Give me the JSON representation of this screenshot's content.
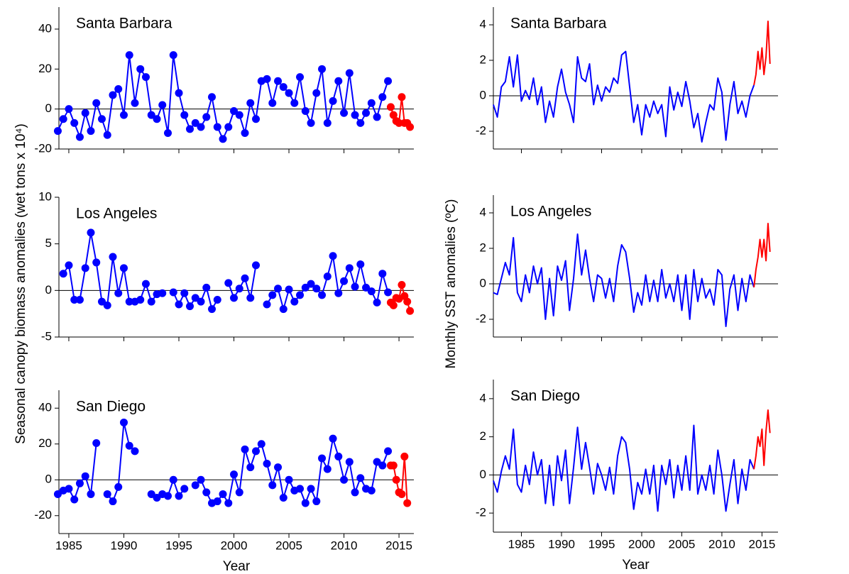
{
  "shared_labels": {
    "left_ylabel": "Seasonal canopy biomass anomalies (wet tons x 10⁴)",
    "right_ylabel": "Monthly SST anomalies (ºC)"
  },
  "chart_data": [
    {
      "type": "line",
      "title": "Santa Barbara",
      "markers": true,
      "zero_line": true,
      "xlim": [
        1984.1,
        2016.35
      ],
      "xticks": [
        1985,
        1990,
        1995,
        2000,
        2005,
        2010,
        2015
      ],
      "ylim": [
        -20,
        51
      ],
      "yticks": [
        -20,
        0,
        20,
        40
      ],
      "series": [
        {
          "color": "#0000ff",
          "x": [
            1984,
            1984.5,
            1985,
            1985.5,
            1986,
            1986.5,
            1987,
            1987.5,
            1988,
            1988.5,
            1989,
            1989.5,
            1990,
            1990.5,
            1991,
            1991.5,
            1992,
            1992.5,
            1993,
            1993.5,
            1994,
            1994.5,
            1995,
            1995.5,
            1996,
            1996.5,
            1997,
            1997.5,
            1998,
            1998.5,
            1999,
            1999.5,
            2000,
            2000.5,
            2001,
            2001.5,
            2002,
            2002.5,
            2003,
            2003.5,
            2004,
            2004.5,
            2005,
            2005.5,
            2006,
            2006.5,
            2007,
            2007.5,
            2008,
            2008.5,
            2009,
            2009.5,
            2010,
            2010.5,
            2011,
            2011.5,
            2012,
            2012.5,
            2013,
            2013.5,
            2014
          ],
          "values": [
            -11,
            -5,
            0,
            -7,
            -14,
            -2,
            -11,
            3,
            -5,
            -13,
            7,
            10,
            -3,
            27,
            3,
            20,
            16,
            -3,
            -5,
            2,
            -12,
            27,
            8,
            -3,
            -10,
            -7,
            -9,
            -4,
            6,
            -9,
            -15,
            -9,
            -1,
            -3,
            -12,
            3,
            -5,
            14,
            15,
            3,
            14,
            11,
            8,
            3,
            16,
            -1,
            -7,
            8,
            20,
            -7,
            4,
            14,
            -2,
            18,
            -3,
            -7,
            -2,
            3,
            -4,
            6,
            14
          ]
        },
        {
          "color": "#ff0000",
          "x": [
            2014.25,
            2014.5,
            2014.75,
            2015,
            2015.25,
            2015.5,
            2015.75,
            2016
          ],
          "values": [
            1,
            -3,
            -6,
            -7,
            6,
            -7,
            -7,
            -9
          ]
        }
      ]
    },
    {
      "type": "line",
      "title": "Los Angeles",
      "markers": true,
      "zero_line": true,
      "xlim": [
        1984.1,
        2016.35
      ],
      "xticks": [
        1985,
        1990,
        1995,
        2000,
        2005,
        2010,
        2015
      ],
      "ylim": [
        -5,
        10
      ],
      "yticks": [
        -5,
        0,
        5,
        10
      ],
      "series": [
        {
          "color": "#0000ff",
          "x": [
            1984.5,
            1985,
            1985.5,
            1986,
            1986.5,
            1987,
            1987.5,
            1988,
            1988.5,
            1989,
            1989.5,
            1990,
            1990.5,
            1991,
            1991.5,
            1992,
            1992.5,
            1993,
            1993.5,
            1994,
            1994.5,
            1995,
            1995.5,
            1996,
            1996.5,
            1997,
            1997.5,
            1998,
            1998.5,
            1999,
            1999.5,
            2000,
            2000.5,
            2001,
            2001.5,
            2002,
            2002.5,
            2003,
            2003.5,
            2004,
            2004.5,
            2005,
            2005.5,
            2006,
            2006.5,
            2007,
            2007.5,
            2008,
            2008.5,
            2009,
            2009.5,
            2010,
            2010.5,
            2011,
            2011.5,
            2012,
            2012.5,
            2013,
            2013.5,
            2014
          ],
          "values": [
            1.8,
            2.7,
            -1,
            -1,
            2.4,
            6.2,
            3.0,
            -1.2,
            -1.6,
            3.6,
            -0.3,
            2.4,
            -1.2,
            -1.2,
            -1.0,
            0.7,
            -1.2,
            -0.4,
            -0.3,
            null,
            -0.2,
            -1.5,
            -0.3,
            -1.7,
            -0.8,
            -1.2,
            0.3,
            -2.0,
            -1.0,
            null,
            0.8,
            -0.8,
            0.2,
            1.3,
            -0.8,
            2.7,
            null,
            -1.5,
            -0.5,
            0.2,
            -2.0,
            0.1,
            -1.2,
            -0.5,
            0.3,
            0.7,
            0.2,
            -0.5,
            1.5,
            3.7,
            -0.3,
            1.0,
            2.4,
            0.4,
            2.8,
            0.3,
            -0.1,
            -1.3,
            1.8,
            -0.2
          ]
        },
        {
          "color": "#ff0000",
          "x": [
            2014.25,
            2014.5,
            2014.75,
            2015,
            2015.25,
            2015.5,
            2015.75,
            2016
          ],
          "values": [
            -1.3,
            -1.6,
            -0.8,
            -0.9,
            0.6,
            -0.6,
            -1.2,
            -2.2
          ]
        }
      ]
    },
    {
      "type": "line",
      "title": "San Diego",
      "markers": true,
      "zero_line": true,
      "xlabel": "Year",
      "xlim": [
        1984.1,
        2016.35
      ],
      "xticks": [
        1985,
        1990,
        1995,
        2000,
        2005,
        2010,
        2015
      ],
      "ylim": [
        -30,
        50
      ],
      "yticks": [
        -20,
        0,
        20,
        40
      ],
      "series": [
        {
          "color": "#0000ff",
          "x": [
            1984,
            1984.5,
            1985,
            1985.5,
            1986,
            1986.5,
            1987,
            1987.5,
            1988,
            1988.5,
            1989,
            1989.5,
            1990,
            1990.5,
            1991,
            1991.5,
            1992,
            1992.5,
            1993,
            1993.5,
            1994,
            1994.5,
            1995,
            1995.5,
            1996,
            1996.5,
            1997,
            1997.5,
            1998,
            1998.5,
            1999,
            1999.5,
            2000,
            2000.5,
            2001,
            2001.5,
            2002,
            2002.5,
            2003,
            2003.5,
            2004,
            2004.5,
            2005,
            2005.5,
            2006,
            2006.5,
            2007,
            2007.5,
            2008,
            2008.5,
            2009,
            2009.5,
            2010,
            2010.5,
            2011,
            2011.5,
            2012,
            2012.5,
            2013,
            2013.5,
            2014
          ],
          "values": [
            -8,
            -6,
            -5,
            -11,
            -2,
            2,
            -8,
            20.5,
            null,
            -8,
            -12,
            -4,
            32,
            19,
            16,
            null,
            null,
            -8,
            -10,
            -8,
            -9,
            0,
            -9,
            -5,
            null,
            -3,
            0,
            -7,
            -13,
            -12,
            -8,
            -13,
            3,
            -7,
            17,
            7,
            16,
            20,
            9,
            -3,
            7,
            -10,
            0,
            -6,
            -5,
            -13,
            -5,
            -12,
            12,
            6,
            23,
            13,
            0,
            10,
            -7,
            1,
            -5,
            -6,
            10,
            8,
            16
          ]
        },
        {
          "color": "#ff0000",
          "x": [
            2014.25,
            2014.5,
            2014.75,
            2015,
            2015.25,
            2015.5,
            2015.75
          ],
          "values": [
            8,
            8,
            0,
            -7,
            -8,
            13,
            -13
          ]
        }
      ]
    },
    {
      "type": "line",
      "title": "Santa Barbara",
      "markers": false,
      "zero_line": true,
      "xlim": [
        1981.5,
        2017
      ],
      "xticks": [
        1985,
        1990,
        1995,
        2000,
        2005,
        2010,
        2015
      ],
      "ylim": [
        -3,
        5
      ],
      "yticks": [
        -2,
        0,
        2,
        4
      ],
      "series": [
        {
          "color": "#0000ff",
          "x": [
            1981.5,
            1982,
            1982.5,
            1983,
            1983.5,
            1984,
            1984.5,
            1985,
            1985.5,
            1986,
            1986.5,
            1987,
            1987.5,
            1988,
            1988.5,
            1989,
            1989.5,
            1990,
            1990.5,
            1991,
            1991.5,
            1992,
            1992.5,
            1993,
            1993.5,
            1994,
            1994.5,
            1995,
            1995.5,
            1996,
            1996.5,
            1997,
            1997.5,
            1998,
            1998.5,
            1999,
            1999.5,
            2000,
            2000.5,
            2001,
            2001.5,
            2002,
            2002.5,
            2003,
            2003.5,
            2004,
            2004.5,
            2005,
            2005.5,
            2006,
            2006.5,
            2007,
            2007.5,
            2008,
            2008.5,
            2009,
            2009.5,
            2010,
            2010.5,
            2011,
            2011.5,
            2012,
            2012.5,
            2013,
            2013.5,
            2014
          ],
          "values": [
            -0.5,
            -1.2,
            0.5,
            0.8,
            2.2,
            0.5,
            2.3,
            -0.3,
            0.3,
            -0.2,
            1.0,
            -0.5,
            0.5,
            -1.5,
            -0.3,
            -1.2,
            0.5,
            1.5,
            0.2,
            -0.5,
            -1.5,
            2.2,
            1.0,
            0.8,
            1.8,
            -0.5,
            0.6,
            -0.3,
            0.5,
            0.2,
            1.0,
            0.7,
            2.3,
            2.5,
            0.5,
            -1.5,
            -0.5,
            -2.2,
            -0.5,
            -1.2,
            -0.3,
            -1.0,
            -0.5,
            -2.3,
            0.5,
            -0.8,
            0.2,
            -0.6,
            0.8,
            -0.3,
            -1.8,
            -1.0,
            -2.6,
            -1.5,
            -0.5,
            -0.8,
            1.0,
            0.2,
            -2.5,
            -0.5,
            0.8,
            -1.0,
            -0.3,
            -1.2,
            0.0,
            0.6
          ]
        },
        {
          "color": "#ff0000",
          "x": [
            2014,
            2014.25,
            2014.5,
            2014.75,
            2015,
            2015.25,
            2015.5,
            2015.75,
            2016
          ],
          "values": [
            0.6,
            1.2,
            2.5,
            1.5,
            2.7,
            1.2,
            2.2,
            4.2,
            1.8
          ]
        }
      ]
    },
    {
      "type": "line",
      "title": "Los Angeles",
      "markers": false,
      "zero_line": true,
      "xlim": [
        1981.5,
        2017
      ],
      "xticks": [
        1985,
        1990,
        1995,
        2000,
        2005,
        2010,
        2015
      ],
      "ylim": [
        -3,
        5
      ],
      "yticks": [
        -2,
        0,
        2,
        4
      ],
      "series": [
        {
          "color": "#0000ff",
          "x": [
            1981.5,
            1982,
            1982.5,
            1983,
            1983.5,
            1984,
            1984.5,
            1985,
            1985.5,
            1986,
            1986.5,
            1987,
            1987.5,
            1988,
            1988.5,
            1989,
            1989.5,
            1990,
            1990.5,
            1991,
            1991.5,
            1992,
            1992.5,
            1993,
            1993.5,
            1994,
            1994.5,
            1995,
            1995.5,
            1996,
            1996.5,
            1997,
            1997.5,
            1998,
            1998.5,
            1999,
            1999.5,
            2000,
            2000.5,
            2001,
            2001.5,
            2002,
            2002.5,
            2003,
            2003.5,
            2004,
            2004.5,
            2005,
            2005.5,
            2006,
            2006.5,
            2007,
            2007.5,
            2008,
            2008.5,
            2009,
            2009.5,
            2010,
            2010.5,
            2011,
            2011.5,
            2012,
            2012.5,
            2013,
            2013.5,
            2014
          ],
          "values": [
            -0.5,
            -0.6,
            0.3,
            1.2,
            0.5,
            2.6,
            -0.5,
            -1.0,
            0.5,
            -0.5,
            1.0,
            0.0,
            0.9,
            -2.0,
            0.3,
            -1.8,
            1.0,
            0.2,
            1.3,
            -1.5,
            0.3,
            2.8,
            0.5,
            1.9,
            0.3,
            -1.0,
            0.5,
            0.3,
            -0.8,
            0.3,
            -1.0,
            1.0,
            2.2,
            1.8,
            0.3,
            -1.6,
            -0.5,
            -1.2,
            0.5,
            -1.0,
            0.2,
            -1.0,
            0.8,
            -0.8,
            0.0,
            -1.0,
            0.5,
            -1.5,
            0.5,
            -2.0,
            0.8,
            -1.0,
            0.3,
            -0.8,
            -0.3,
            -1.2,
            0.8,
            0.5,
            -2.4,
            -0.3,
            0.5,
            -1.5,
            0.3,
            -1.0,
            0.5,
            -0.2
          ]
        },
        {
          "color": "#ff0000",
          "x": [
            2014,
            2014.25,
            2014.5,
            2014.75,
            2015,
            2015.25,
            2015.5,
            2015.75,
            2016
          ],
          "values": [
            -0.2,
            0.8,
            1.5,
            2.5,
            1.5,
            2.5,
            1.3,
            3.4,
            1.8
          ]
        }
      ]
    },
    {
      "type": "line",
      "title": "San Diego",
      "markers": false,
      "zero_line": true,
      "xlabel": "Year",
      "xlim": [
        1981.5,
        2017
      ],
      "xticks": [
        1985,
        1990,
        1995,
        2000,
        2005,
        2010,
        2015
      ],
      "ylim": [
        -3,
        5
      ],
      "yticks": [
        -2,
        0,
        2,
        4
      ],
      "series": [
        {
          "color": "#0000ff",
          "x": [
            1981.5,
            1982,
            1982.5,
            1983,
            1983.5,
            1984,
            1984.5,
            1985,
            1985.5,
            1986,
            1986.5,
            1987,
            1987.5,
            1988,
            1988.5,
            1989,
            1989.5,
            1990,
            1990.5,
            1991,
            1991.5,
            1992,
            1992.5,
            1993,
            1993.5,
            1994,
            1994.5,
            1995,
            1995.5,
            1996,
            1996.5,
            1997,
            1997.5,
            1998,
            1998.5,
            1999,
            1999.5,
            2000,
            2000.5,
            2001,
            2001.5,
            2002,
            2002.5,
            2003,
            2003.5,
            2004,
            2004.5,
            2005,
            2005.5,
            2006,
            2006.5,
            2007,
            2007.5,
            2008,
            2008.5,
            2009,
            2009.5,
            2010,
            2010.5,
            2011,
            2011.5,
            2012,
            2012.5,
            2013,
            2013.5,
            2014
          ],
          "values": [
            -0.3,
            -0.9,
            0.2,
            1.0,
            0.3,
            2.4,
            -0.5,
            -0.9,
            0.5,
            -0.5,
            1.2,
            0.0,
            0.8,
            -1.5,
            0.5,
            -1.6,
            1.0,
            -0.3,
            1.3,
            -1.5,
            0.4,
            2.5,
            0.3,
            1.7,
            0.4,
            -1.0,
            0.6,
            0.0,
            -0.8,
            0.4,
            -1.0,
            1.0,
            2.0,
            1.7,
            0.3,
            -1.8,
            -0.4,
            -1.0,
            0.3,
            -1.0,
            0.5,
            -1.9,
            0.5,
            -0.5,
            0.8,
            -1.2,
            0.5,
            -0.8,
            1.0,
            -0.8,
            2.6,
            -1.0,
            0.0,
            -0.8,
            0.5,
            -1.0,
            1.3,
            0.0,
            -1.9,
            -0.5,
            0.8,
            -1.5,
            0.3,
            -0.8,
            0.8,
            0.3
          ]
        },
        {
          "color": "#ff0000",
          "x": [
            2014,
            2014.25,
            2014.5,
            2014.75,
            2015,
            2015.25,
            2015.5,
            2015.75,
            2016
          ],
          "values": [
            0.3,
            1.0,
            2.0,
            1.5,
            2.4,
            0.5,
            2.3,
            3.4,
            2.2
          ]
        }
      ]
    }
  ]
}
